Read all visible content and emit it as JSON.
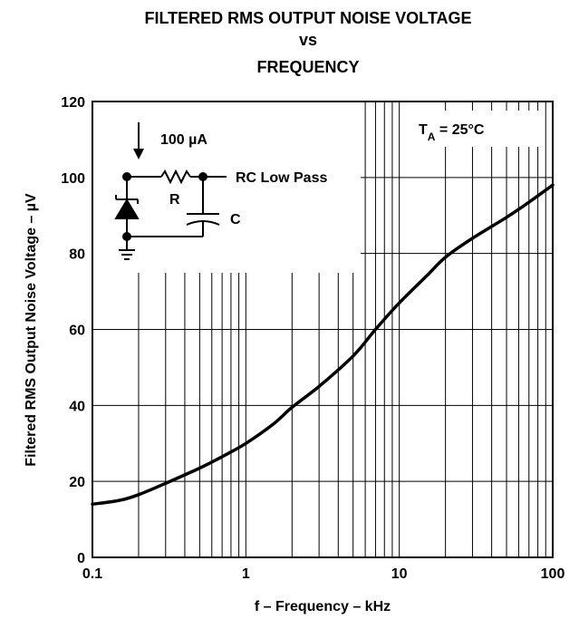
{
  "chart_data": {
    "type": "line",
    "title_lines": [
      "FILTERED RMS OUTPUT NOISE VOLTAGE",
      "vs",
      "FREQUENCY"
    ],
    "xlabel": "f – Frequency – kHz",
    "ylabel": "Filtered RMS Output Noise Voltage – µV",
    "x_scale": "log",
    "xlim": [
      0.1,
      100
    ],
    "ylim": [
      0,
      120
    ],
    "x_ticks": [
      {
        "value": 0.1,
        "label": "0.1"
      },
      {
        "value": 1,
        "label": "1"
      },
      {
        "value": 10,
        "label": "10"
      },
      {
        "value": 100,
        "label": "100"
      }
    ],
    "y_ticks": [
      {
        "value": 0,
        "label": "0"
      },
      {
        "value": 20,
        "label": "20"
      },
      {
        "value": 40,
        "label": "40"
      },
      {
        "value": 60,
        "label": "60"
      },
      {
        "value": 80,
        "label": "80"
      },
      {
        "value": 100,
        "label": "100"
      },
      {
        "value": 120,
        "label": "120"
      }
    ],
    "grid": true,
    "series": [
      {
        "x": [
          0.1,
          0.15,
          0.2,
          0.3,
          0.5,
          0.7,
          1,
          1.5,
          2,
          3,
          5,
          7,
          10,
          15,
          20,
          30,
          50,
          70,
          100
        ],
        "y": [
          14,
          15,
          16.5,
          19.5,
          23.5,
          26.5,
          30,
          35,
          39.5,
          45,
          53,
          60,
          67,
          74,
          79,
          84,
          89.5,
          93.5,
          98
        ]
      }
    ],
    "annotations": {
      "condition": "T",
      "condition_sub": "A",
      "condition_rest": " = 25°C",
      "current": "100 µA",
      "resistor": "R",
      "filter": "RC Low Pass",
      "capacitor": "C"
    }
  },
  "colors": {
    "line": "#000000",
    "background": "#ffffff"
  }
}
